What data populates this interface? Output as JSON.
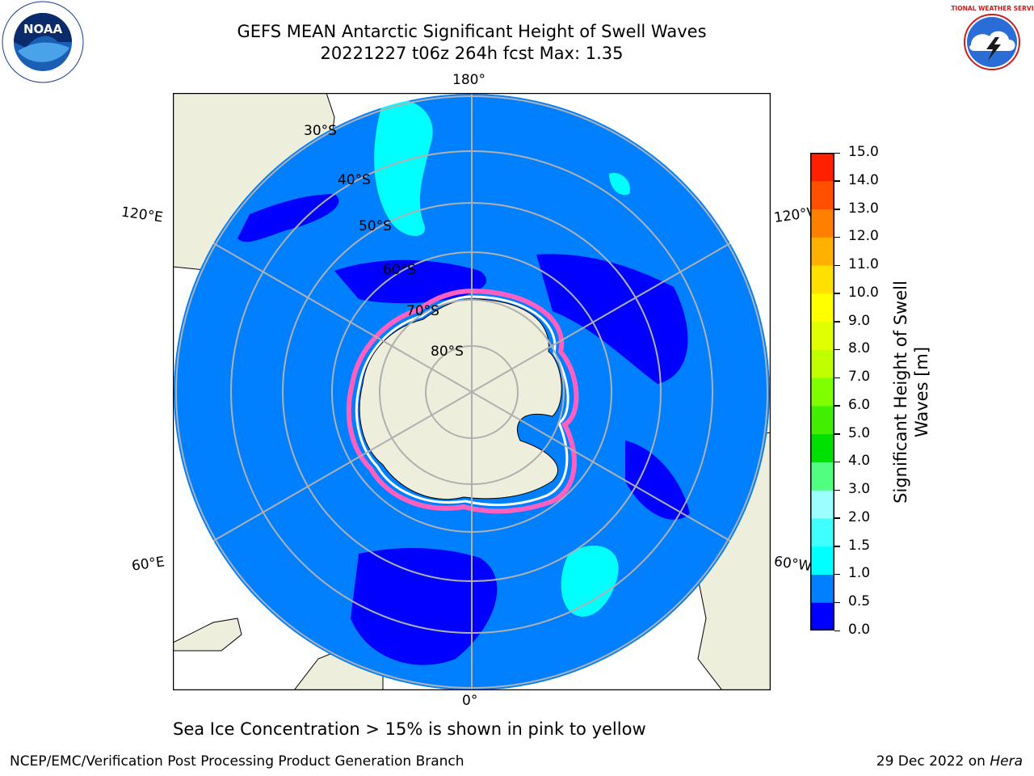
{
  "title": {
    "line1": "GEFS MEAN Antarctic Significant Height of Swell Waves",
    "line2": "20221227 t06z 264h fcst   Max: 1.35"
  },
  "map": {
    "projection": "south-polar-stereographic",
    "longitude_labels": {
      "top": "180°",
      "bottom": "0°",
      "upper_left": "120°E",
      "upper_right": "120°W",
      "lower_left": "60°E",
      "lower_right": "60°W"
    },
    "latitude_labels": [
      "30°S",
      "40°S",
      "50°S",
      "60°S",
      "70°S",
      "80°S"
    ],
    "colors": {
      "ocean_base": "#0080ff",
      "land": "#eeeedc",
      "graticule": "#b0b0b0",
      "low_swell": "#0000ff",
      "cyan_swell": "#00ffff",
      "ice_pink": "#ff60c0"
    }
  },
  "colorbar": {
    "label": "Significant Height of Swell Waves [m]",
    "ticks": [
      "0.0",
      "0.5",
      "1.0",
      "1.5",
      "2.0",
      "3.0",
      "4.0",
      "5.0",
      "6.0",
      "7.0",
      "8.0",
      "9.0",
      "10.0",
      "11.0",
      "12.0",
      "13.0",
      "14.0",
      "15.0"
    ],
    "colors": [
      "#0000ff",
      "#0080ff",
      "#00ffff",
      "#40ffff",
      "#9cffff",
      "#50ff80",
      "#00e000",
      "#40f000",
      "#80ff00",
      "#c0ff00",
      "#e0ff00",
      "#ffff00",
      "#ffe000",
      "#ffb000",
      "#ff8000",
      "#ff5000",
      "#ff2000"
    ]
  },
  "note": "Sea Ice Concentration > 15% is shown in pink to yellow",
  "footer": {
    "left": "NCEP/EMC/Verification Post Processing Product Generation Branch",
    "date": "29 Dec 2022 on ",
    "host": "Hera"
  },
  "logos": {
    "noaa_text": "NOAA",
    "nws_text": "NATIONAL WEATHER SERVICE"
  }
}
